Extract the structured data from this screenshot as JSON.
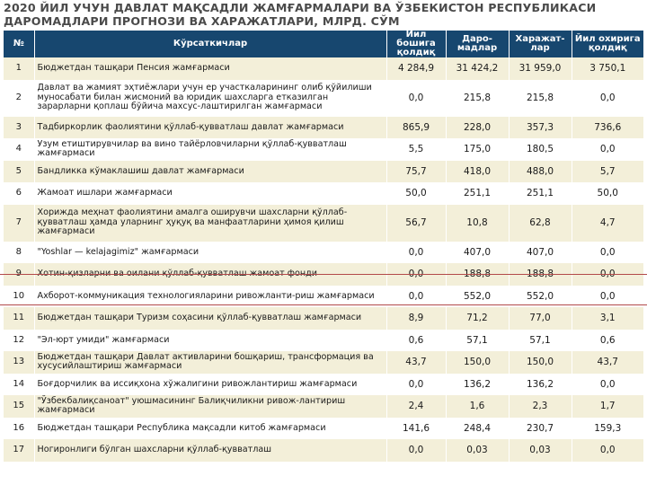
{
  "title_line1": "2020 ЙИЛ УЧУН ДАВЛАТ МАҚСАДЛИ ЖАМҒАРМАЛАРИ ВА ЎЗБЕКИСТОН РЕСПУБЛИКАСИ",
  "title_line2": "ДАРОМАДЛАРИ ПРОГНОЗИ ВА ХАРАЖАТЛАРИ, МЛРД. СЎМ",
  "headers": {
    "num": "№",
    "name": "Кўрсаткичлар",
    "start": "Йил бошига қолдиқ",
    "income": "Даро-мадлар",
    "expense": "Харажат-лар",
    "end": "Йил охирига қолдиқ"
  },
  "rows": [
    {
      "num": "1",
      "name": "Бюджетдан ташқари Пенсия жамғармаси",
      "start": "4 284,9",
      "income": "31 424,2",
      "expense": "31 959,0",
      "end": "3 750,1"
    },
    {
      "num": "2",
      "name": "Давлат ва жамият эҳтиёжлари учун ер участкаларининг олиб қўйилиши муносабати билан жисмоний ва юридик шахсларга етказилган зарарларни қоплаш бўйича махсус-лаштирилган жамғармаси",
      "start": "0,0",
      "income": "215,8",
      "expense": "215,8",
      "end": "0,0"
    },
    {
      "num": "3",
      "name": "Тадбиркорлик фаолиятини қўллаб-қувватлаш давлат жамғармаси",
      "start": "865,9",
      "income": "228,0",
      "expense": "357,3",
      "end": "736,6"
    },
    {
      "num": "4",
      "name": "Узум етиштирувчилар ва вино тайёрловчиларни қўллаб-қувватлаш жамғармаси",
      "start": "5,5",
      "income": "175,0",
      "expense": "180,5",
      "end": "0,0"
    },
    {
      "num": "5",
      "name": "Бандликка кўмаклашиш давлат жамғармаси",
      "start": "75,7",
      "income": "418,0",
      "expense": "488,0",
      "end": "5,7"
    },
    {
      "num": "6",
      "name": "Жамоат ишлари жамғармаси",
      "start": "50,0",
      "income": "251,1",
      "expense": "251,1",
      "end": "50,0"
    },
    {
      "num": "7",
      "name": "Хорижда меҳнат фаолиятини амалга оширувчи шахсларни қўллаб-қувватлаш ҳамда уларнинг ҳуқуқ ва манфаатларини ҳимоя қилиш жамғармаси",
      "start": "56,7",
      "income": "10,8",
      "expense": "62,8",
      "end": "4,7"
    },
    {
      "num": "8",
      "name": "\"Yoshlar — kelajagimiz\" жамғармаси",
      "start": "0,0",
      "income": "407,0",
      "expense": "407,0",
      "end": "0,0"
    },
    {
      "num": "9",
      "name": "Хотин-қизларни ва оилани қўллаб-қувватлаш жамоат фонди",
      "start": "0,0",
      "income": "188,8",
      "expense": "188,8",
      "end": "0,0"
    },
    {
      "num": "10",
      "name": "Ахборот-коммуникация технологияларини ривожланти-риш жамғармаси",
      "start": "0,0",
      "income": "552,0",
      "expense": "552,0",
      "end": "0,0"
    },
    {
      "num": "11",
      "name": "Бюджетдан ташқари Туризм соҳасини қўллаб-қувватлаш жамғармаси",
      "start": "8,9",
      "income": "71,2",
      "expense": "77,0",
      "end": "3,1"
    },
    {
      "num": "12",
      "name": "\"Эл-юрт умиди\" жамғармаси",
      "start": "0,6",
      "income": "57,1",
      "expense": "57,1",
      "end": "0,6"
    },
    {
      "num": "13",
      "name": "Бюджетдан ташқари Давлат активларини бошқариш, трансформация ва хусусийлаштириш жамғармаси",
      "start": "43,7",
      "income": "150,0",
      "expense": "150,0",
      "end": "43,7"
    },
    {
      "num": "14",
      "name": "Боғдорчилик ва иссиқхона хўжалигини ривожлантириш жамғармаси",
      "start": "0,0",
      "income": "136,2",
      "expense": "136,2",
      "end": "0,0"
    },
    {
      "num": "15",
      "name": "\"Ўзбекбалиқсаноат\" уюшмасининг Балиқчиликни ривож-лантириш жамғармаси",
      "start": "2,4",
      "income": "1,6",
      "expense": "2,3",
      "end": "1,7"
    },
    {
      "num": "16",
      "name": "Бюджетдан ташқари Республика мақсадли китоб жамғармаси",
      "start": "141,6",
      "income": "248,4",
      "expense": "230,7",
      "end": "159,3"
    },
    {
      "num": "17",
      "name": "Ногиронлиги бўлган шахсларни қўллаб-қувватлаш",
      "start": "0,0",
      "income": "0,03",
      "expense": "0,03",
      "end": "0,0"
    }
  ]
}
